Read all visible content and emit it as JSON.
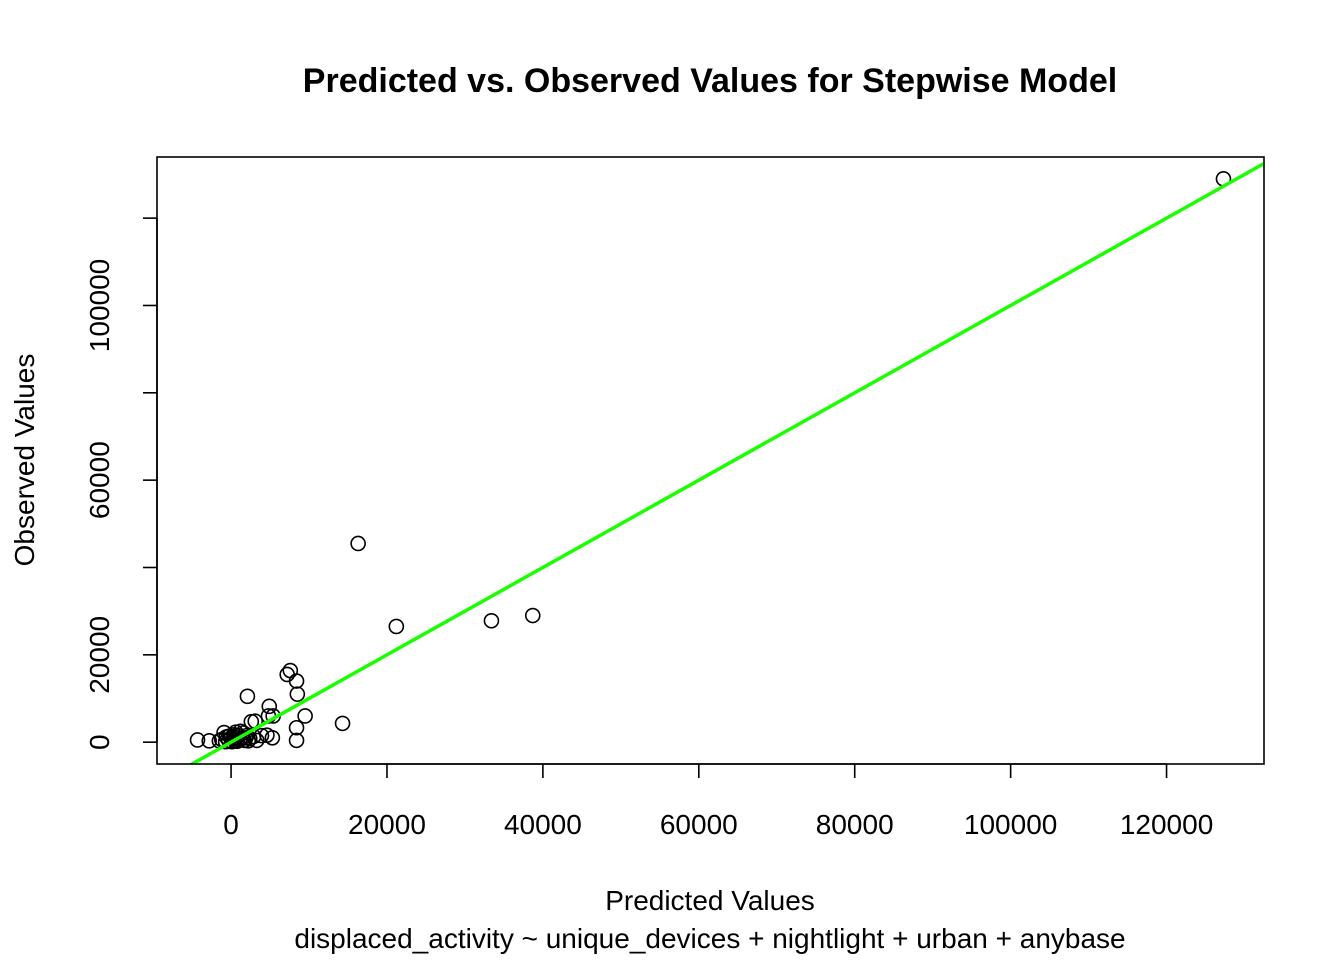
{
  "chart_data": {
    "type": "scatter",
    "title": "Predicted vs. Observed Values for Stepwise Model",
    "xlabel": "Predicted Values",
    "subtitle": "displaced_activity ~ unique_devices + nightlight + urban + anybase",
    "ylabel": "Observed Values",
    "xlim": [
      -9500,
      132500
    ],
    "ylim": [
      -5000,
      134000
    ],
    "x_ticks": [
      0,
      20000,
      40000,
      60000,
      80000,
      100000,
      120000
    ],
    "x_tick_labels": [
      "0",
      "20000",
      "40000",
      "60000",
      "80000",
      "100000",
      "120000"
    ],
    "y_ticks": [
      0,
      20000,
      40000,
      60000,
      80000,
      100000,
      120000
    ],
    "y_tick_labels": [
      "0",
      "20000",
      "",
      "60000",
      "",
      "100000",
      ""
    ],
    "grid": false,
    "point_color": "#000000",
    "line_color": "#1aff00",
    "reference_line": {
      "type": "identity",
      "slope": 1,
      "intercept": 0
    },
    "points": [
      {
        "x": 127300,
        "y": 129000
      },
      {
        "x": 16300,
        "y": 45500
      },
      {
        "x": 21200,
        "y": 26500
      },
      {
        "x": 33400,
        "y": 27800
      },
      {
        "x": 38700,
        "y": 29000
      },
      {
        "x": 7600,
        "y": 16400
      },
      {
        "x": 7200,
        "y": 15500
      },
      {
        "x": 8400,
        "y": 14000
      },
      {
        "x": 8500,
        "y": 11000
      },
      {
        "x": 2100,
        "y": 10500
      },
      {
        "x": 4900,
        "y": 8200
      },
      {
        "x": 4800,
        "y": 6000
      },
      {
        "x": 5400,
        "y": 6000
      },
      {
        "x": 9500,
        "y": 6000
      },
      {
        "x": 14300,
        "y": 4300
      },
      {
        "x": 8400,
        "y": 3300
      },
      {
        "x": 8400,
        "y": 400
      },
      {
        "x": 5300,
        "y": 1000
      },
      {
        "x": 4600,
        "y": 1600
      },
      {
        "x": 3300,
        "y": 400
      },
      {
        "x": 2600,
        "y": 4700
      },
      {
        "x": 3100,
        "y": 4800
      },
      {
        "x": 2900,
        "y": 1300
      },
      {
        "x": 3900,
        "y": 1500
      },
      {
        "x": 2400,
        "y": 800
      },
      {
        "x": 1900,
        "y": 1000
      },
      {
        "x": 1500,
        "y": 2100
      },
      {
        "x": 1200,
        "y": 2500
      },
      {
        "x": 900,
        "y": 1500
      },
      {
        "x": 600,
        "y": 2300
      },
      {
        "x": 300,
        "y": 700
      },
      {
        "x": 0,
        "y": 1000
      },
      {
        "x": -300,
        "y": 400
      },
      {
        "x": -600,
        "y": 1200
      },
      {
        "x": -900,
        "y": 2200
      },
      {
        "x": -1200,
        "y": 600
      },
      {
        "x": -1500,
        "y": 300
      },
      {
        "x": -2800,
        "y": 300
      },
      {
        "x": -4300,
        "y": 500
      },
      {
        "x": -700,
        "y": 100
      },
      {
        "x": 100,
        "y": 100
      },
      {
        "x": 500,
        "y": 300
      },
      {
        "x": 800,
        "y": 200
      },
      {
        "x": 1100,
        "y": 600
      },
      {
        "x": 1400,
        "y": 900
      },
      {
        "x": 1700,
        "y": 400
      },
      {
        "x": 2000,
        "y": 1500
      },
      {
        "x": 2200,
        "y": 300
      },
      {
        "x": 700,
        "y": 1000
      },
      {
        "x": 400,
        "y": 1700
      },
      {
        "x": -200,
        "y": 1400
      }
    ]
  }
}
